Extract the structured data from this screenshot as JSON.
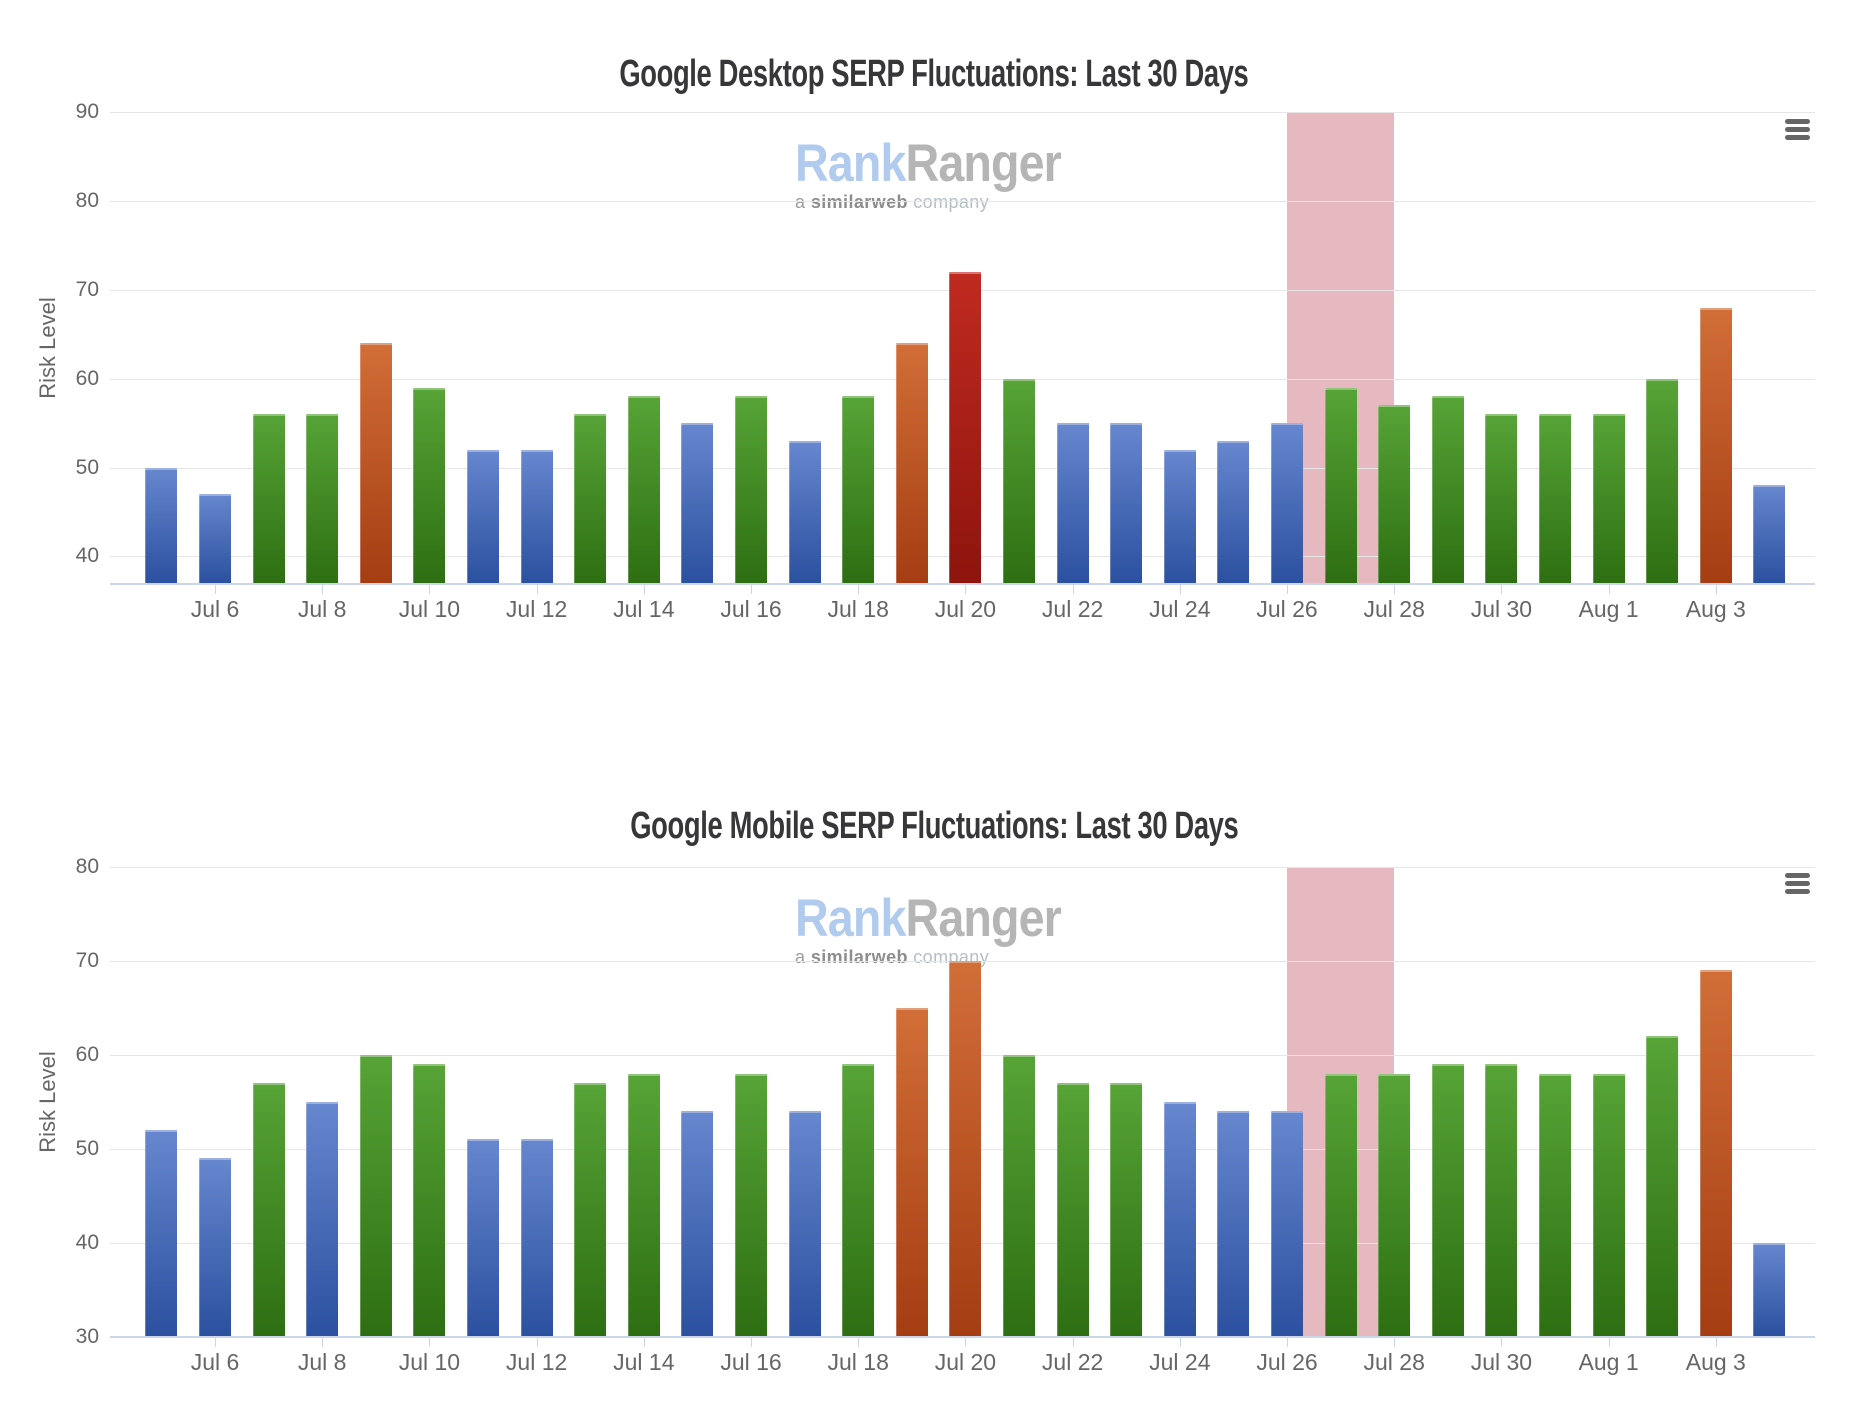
{
  "page": {
    "background": "#ffffff"
  },
  "watermark": {
    "part1": "Rank",
    "part2": "Ranger",
    "sub_a": "a",
    "sub_b": "similarweb",
    "sub_c": "company",
    "colors": {
      "rank": "#b1cbee",
      "ranger": "#b5b5b5",
      "a": "#9b9b9b",
      "similarweb": "#8d8d8d",
      "company": "#b4bfc7"
    }
  },
  "icons": {
    "menu": "hamburger-menu-icon"
  },
  "colors": {
    "grid": "#e6e6e6",
    "axis_line": "#ccd6eb",
    "labels": "#666666",
    "title": "#37373a",
    "plot_band": "#e6b8c0",
    "bar_blue": [
      "#6787cf",
      "#2b509f"
    ],
    "bar_green": [
      "#57a437",
      "#2d6e12"
    ],
    "bar_orange": [
      "#d26e38",
      "#a43d12"
    ],
    "bar_red": [
      "#c02a20",
      "#8d140d"
    ]
  },
  "chart_data": [
    {
      "type": "bar",
      "title": "Google Desktop SERP Fluctuations: Last 30 Days",
      "ylabel": "Risk Level",
      "xlabel": "",
      "grid": "on",
      "legend": "off",
      "ylim": [
        36.9,
        90
      ],
      "yticks": [
        90,
        80,
        70,
        60,
        50,
        40
      ],
      "categories": [
        "Jul 5",
        "Jul 6",
        "Jul 7",
        "Jul 8",
        "Jul 9",
        "Jul 10",
        "Jul 11",
        "Jul 12",
        "Jul 13",
        "Jul 14",
        "Jul 15",
        "Jul 16",
        "Jul 17",
        "Jul 18",
        "Jul 19",
        "Jul 20",
        "Jul 21",
        "Jul 22",
        "Jul 23",
        "Jul 24",
        "Jul 25",
        "Jul 26",
        "Jul 27",
        "Jul 28",
        "Jul 29",
        "Jul 30",
        "Jul 31",
        "Aug 1",
        "Aug 2",
        "Aug 3",
        "Aug 4"
      ],
      "values": [
        50,
        47,
        56,
        56,
        64,
        59,
        52,
        52,
        56,
        58,
        55,
        58,
        53,
        58,
        64,
        72,
        60,
        55,
        55,
        52,
        53,
        55,
        59,
        57,
        58,
        56,
        56,
        56,
        60,
        68,
        48
      ],
      "point_colors": [
        "blue",
        "blue",
        "green",
        "green",
        "orange",
        "green",
        "blue",
        "blue",
        "green",
        "green",
        "blue",
        "green",
        "blue",
        "green",
        "orange",
        "red",
        "green",
        "blue",
        "blue",
        "blue",
        "blue",
        "blue",
        "green",
        "green",
        "green",
        "green",
        "green",
        "green",
        "green",
        "orange",
        "blue"
      ],
      "x_axis_labels": [
        "Jul 6",
        "Jul 8",
        "Jul 10",
        "Jul 12",
        "Jul 14",
        "Jul 16",
        "Jul 18",
        "Jul 20",
        "Jul 22",
        "Jul 24",
        "Jul 26",
        "Jul 28",
        "Jul 30",
        "Aug 1",
        "Aug 3"
      ],
      "plot_band": {
        "from": "Jul 26",
        "to": "Jul 28",
        "color": "#e6b8c0"
      }
    },
    {
      "type": "bar",
      "title": "Google Mobile SERP Fluctuations: Last 30 Days",
      "ylabel": "Risk Level",
      "xlabel": "",
      "grid": "on",
      "legend": "off",
      "ylim": [
        30,
        80
      ],
      "yticks": [
        80,
        70,
        60,
        50,
        40,
        30
      ],
      "categories": [
        "Jul 5",
        "Jul 6",
        "Jul 7",
        "Jul 8",
        "Jul 9",
        "Jul 10",
        "Jul 11",
        "Jul 12",
        "Jul 13",
        "Jul 14",
        "Jul 15",
        "Jul 16",
        "Jul 17",
        "Jul 18",
        "Jul 19",
        "Jul 20",
        "Jul 21",
        "Jul 22",
        "Jul 23",
        "Jul 24",
        "Jul 25",
        "Jul 26",
        "Jul 27",
        "Jul 28",
        "Jul 29",
        "Jul 30",
        "Jul 31",
        "Aug 1",
        "Aug 2",
        "Aug 3",
        "Aug 4"
      ],
      "values": [
        52,
        49,
        57,
        55,
        60,
        59,
        51,
        51,
        57,
        58,
        54,
        58,
        54,
        59,
        65,
        70,
        60,
        57,
        57,
        55,
        54,
        54,
        58,
        58,
        59,
        59,
        58,
        58,
        62,
        69,
        40
      ],
      "point_colors": [
        "blue",
        "blue",
        "green",
        "blue",
        "green",
        "green",
        "blue",
        "blue",
        "green",
        "green",
        "blue",
        "green",
        "blue",
        "green",
        "orange",
        "orange",
        "green",
        "green",
        "green",
        "blue",
        "blue",
        "blue",
        "green",
        "green",
        "green",
        "green",
        "green",
        "green",
        "green",
        "orange",
        "blue"
      ],
      "x_axis_labels": [
        "Jul 6",
        "Jul 8",
        "Jul 10",
        "Jul 12",
        "Jul 14",
        "Jul 16",
        "Jul 18",
        "Jul 20",
        "Jul 22",
        "Jul 24",
        "Jul 26",
        "Jul 28",
        "Jul 30",
        "Aug 1",
        "Aug 3"
      ],
      "plot_band": {
        "from": "Jul 26",
        "to": "Jul 28",
        "color": "#e6b8c0"
      }
    }
  ]
}
